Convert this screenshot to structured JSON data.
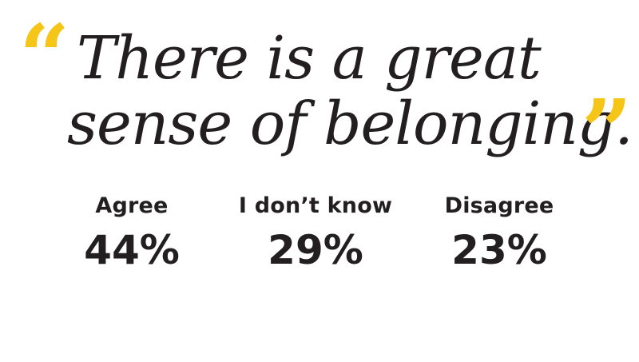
{
  "quote": {
    "open_mark": "“",
    "line1": "There is a great",
    "line2": "sense of belonging.",
    "close_mark": "”"
  },
  "stats": [
    {
      "label": "Agree",
      "value": "44%"
    },
    {
      "label": "I don’t know",
      "value": "29%"
    },
    {
      "label": "Disagree",
      "value": "23%"
    }
  ],
  "colors": {
    "accent": "#f5c518",
    "text": "#231f20",
    "background": "#ffffff"
  }
}
